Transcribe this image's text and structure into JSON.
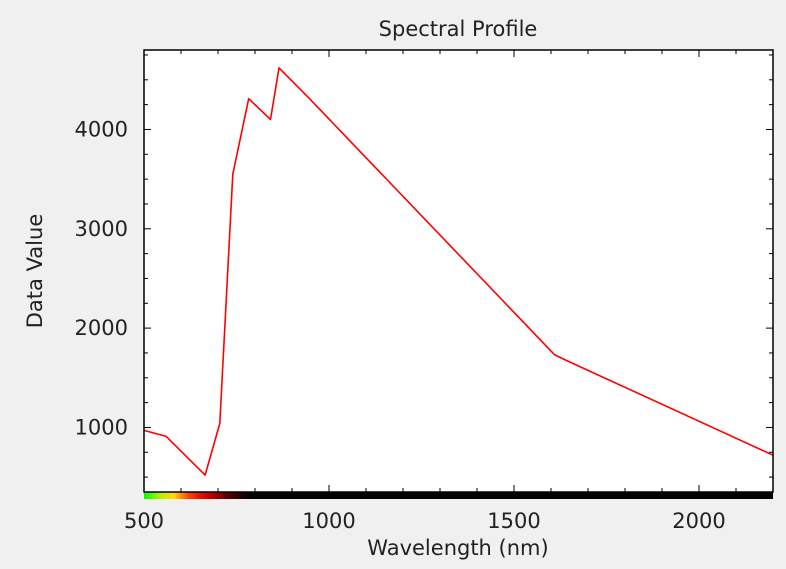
{
  "chart_data": {
    "type": "line",
    "title": "Spectral Profile",
    "xlabel": "Wavelength (nm)",
    "ylabel": "Data Value",
    "xlim": [
      500,
      2200
    ],
    "ylim": [
      350,
      4800
    ],
    "xticks": [
      500,
      1000,
      1500,
      2000
    ],
    "xtick_labels": [
      "500",
      "1000",
      "1500",
      "2000"
    ],
    "yticks": [
      1000,
      2000,
      3000,
      4000
    ],
    "ytick_labels": [
      "1000",
      "2000",
      "3000",
      "4000"
    ],
    "grid": false,
    "legend": "none",
    "series": [
      {
        "color": "#ff0000",
        "x": [
          500,
          560,
          665,
          705,
          740,
          783,
          842,
          865,
          945,
          1610,
          1650,
          2200
        ],
        "y": [
          970,
          910,
          520,
          1040,
          3550,
          4310,
          4100,
          4620,
          4320,
          1730,
          1660,
          720
        ]
      }
    ],
    "spectrum_colorbar": {
      "colors": [
        {
          "wavelength": 500,
          "color": "#00ff00"
        },
        {
          "wavelength": 545,
          "color": "#bbee00"
        },
        {
          "wavelength": 580,
          "color": "#ffdd00"
        },
        {
          "wavelength": 620,
          "color": "#ff4400"
        },
        {
          "wavelength": 665,
          "color": "#dd0000"
        },
        {
          "wavelength": 720,
          "color": "#660000"
        },
        {
          "wavelength": 780,
          "color": "#000000"
        },
        {
          "wavelength": 2200,
          "color": "#000000"
        }
      ]
    }
  }
}
